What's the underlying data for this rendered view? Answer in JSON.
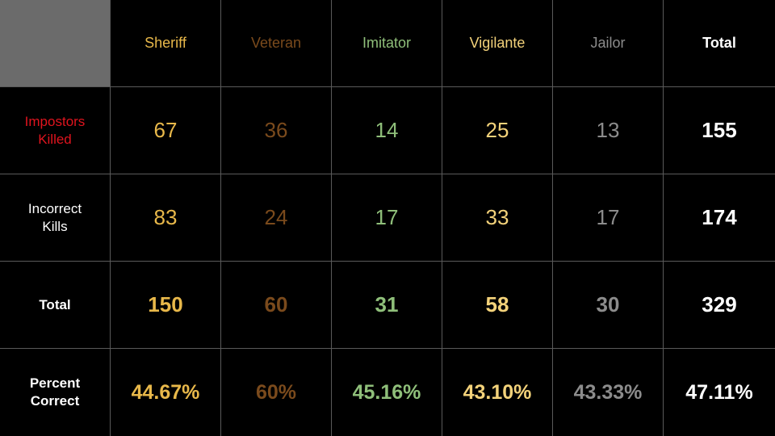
{
  "colors": {
    "sheriff": "#e8b84a",
    "veteran": "#7a4a1c",
    "imitator": "#8fbf7a",
    "vigilante": "#f3d27a",
    "jailor": "#8c8c8c",
    "total": "#ffffff",
    "impostors_label": "#e0141e",
    "white": "#ffffff",
    "corner": "#6b6b6b",
    "grid_line": "#5a5a5a"
  },
  "columns": [
    {
      "key": "sheriff",
      "label": "Sheriff"
    },
    {
      "key": "veteran",
      "label": "Veteran"
    },
    {
      "key": "imitator",
      "label": "Imitator"
    },
    {
      "key": "vigilante",
      "label": "Vigilante"
    },
    {
      "key": "jailor",
      "label": "Jailor"
    },
    {
      "key": "total",
      "label": "Total"
    }
  ],
  "rows": [
    {
      "key": "impostors_killed",
      "label": "Impostors\nKilled",
      "values": [
        "67",
        "36",
        "14",
        "25",
        "13",
        "155"
      ]
    },
    {
      "key": "incorrect_kills",
      "label": "Incorrect\nKills",
      "values": [
        "83",
        "24",
        "17",
        "33",
        "17",
        "174"
      ]
    },
    {
      "key": "total",
      "label": "Total",
      "values": [
        "150",
        "60",
        "31",
        "58",
        "30",
        "329"
      ]
    },
    {
      "key": "percent_correct",
      "label": "Percent\nCorrect",
      "values": [
        "44.67%",
        "60%",
        "45.16%",
        "43.10%",
        "43.33%",
        "47.11%"
      ]
    }
  ]
}
